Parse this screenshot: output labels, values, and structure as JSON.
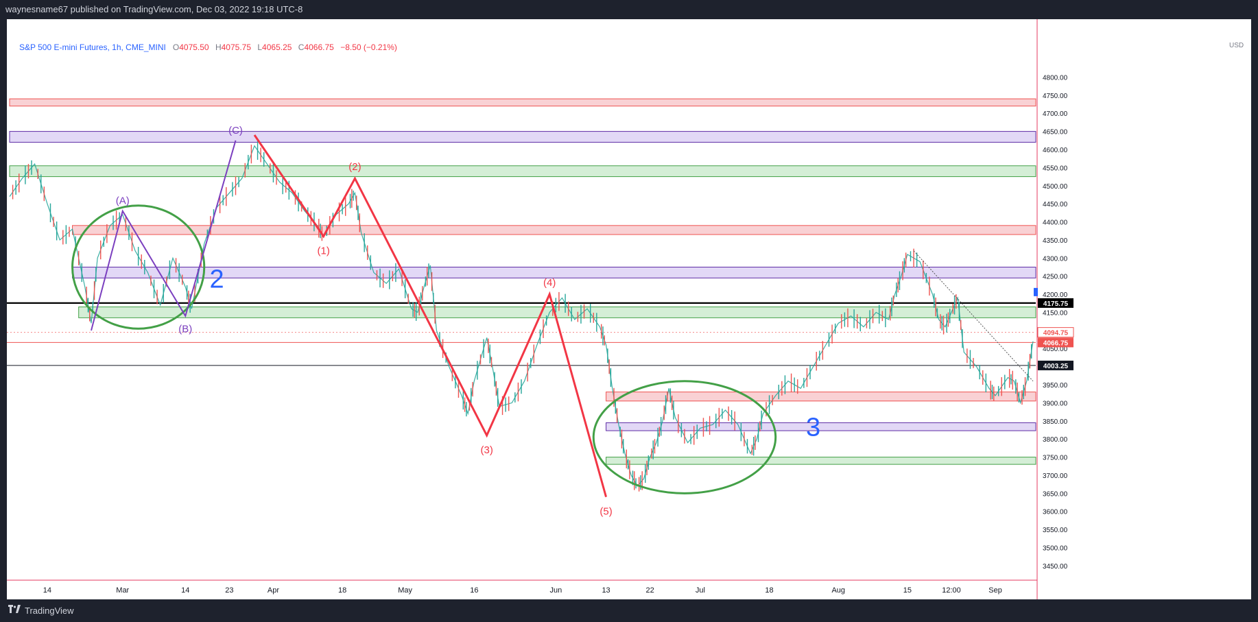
{
  "header": {
    "published_text": "waynesname67 published on TradingView.com, Dec 03, 2022 19:18 UTC-8"
  },
  "legend": {
    "symbol": "S&P 500 E-mini Futures, 1h, CME_MINI",
    "open_label": "O",
    "open": "4075.50",
    "high_label": "H",
    "high": "4075.75",
    "low_label": "L",
    "low": "4065.25",
    "close_label": "C",
    "close": "4066.75",
    "change": "−8.50 (−0.21%)"
  },
  "footer": {
    "brand": "TradingView"
  },
  "colors": {
    "up": "#26a69a",
    "down": "#ef5350",
    "wave": "#f23645",
    "abc": "#7b3fbf",
    "ellipse": "#43a047",
    "number": "#2962ff",
    "red_zone": "#f8c9cc",
    "purple_zone": "#ddd1f4",
    "green_zone": "#cdebcf"
  },
  "chart_data": {
    "type": "line",
    "title": "S&P 500 E-mini Futures, 1h, CME_MINI",
    "currency": "USD",
    "ylim": [
      3410,
      4960
    ],
    "y_ticks": [
      3450,
      3500,
      3550,
      3600,
      3650,
      3700,
      3750,
      3800,
      3850,
      3900,
      3950,
      4000,
      4050,
      4100,
      4150,
      4200,
      4250,
      4300,
      4350,
      4400,
      4450,
      4500,
      4550,
      4600,
      4650,
      4700,
      4750,
      4800
    ],
    "x_ticks": [
      {
        "label": "14",
        "idx": 6
      },
      {
        "label": "Mar",
        "idx": 18
      },
      {
        "label": "14",
        "idx": 28
      },
      {
        "label": "23",
        "idx": 35
      },
      {
        "label": "Apr",
        "idx": 42
      },
      {
        "label": "18",
        "idx": 53
      },
      {
        "label": "May",
        "idx": 63
      },
      {
        "label": "16",
        "idx": 74
      },
      {
        "label": "Jun",
        "idx": 87
      },
      {
        "label": "13",
        "idx": 95
      },
      {
        "label": "22",
        "idx": 102
      },
      {
        "label": "Jul",
        "idx": 110
      },
      {
        "label": "18",
        "idx": 121
      },
      {
        "label": "Aug",
        "idx": 132
      },
      {
        "label": "15",
        "idx": 143
      },
      {
        "label": "12:00",
        "idx": 150
      },
      {
        "label": "Sep",
        "idx": 157
      }
    ],
    "x_count": 164,
    "price_series": {
      "name": "",
      "points": [
        [
          0,
          4470
        ],
        [
          2,
          4520
        ],
        [
          4,
          4560
        ],
        [
          6,
          4450
        ],
        [
          8,
          4350
        ],
        [
          10,
          4380
        ],
        [
          12,
          4220
        ],
        [
          13,
          4120
        ],
        [
          14,
          4300
        ],
        [
          16,
          4390
        ],
        [
          18,
          4420
        ],
        [
          20,
          4320
        ],
        [
          22,
          4260
        ],
        [
          24,
          4170
        ],
        [
          26,
          4300
        ],
        [
          28,
          4220
        ],
        [
          29,
          4160
        ],
        [
          31,
          4340
        ],
        [
          33,
          4440
        ],
        [
          35,
          4480
        ],
        [
          37,
          4520
        ],
        [
          39,
          4610
        ],
        [
          41,
          4560
        ],
        [
          43,
          4510
        ],
        [
          45,
          4480
        ],
        [
          47,
          4430
        ],
        [
          49,
          4390
        ],
        [
          50,
          4360
        ],
        [
          52,
          4420
        ],
        [
          54,
          4450
        ],
        [
          55,
          4480
        ],
        [
          56,
          4370
        ],
        [
          58,
          4260
        ],
        [
          60,
          4230
        ],
        [
          62,
          4270
        ],
        [
          64,
          4160
        ],
        [
          65,
          4150
        ],
        [
          66,
          4220
        ],
        [
          67,
          4280
        ],
        [
          68,
          4100
        ],
        [
          70,
          4000
        ],
        [
          72,
          3920
        ],
        [
          73,
          3870
        ],
        [
          74,
          3960
        ],
        [
          76,
          4080
        ],
        [
          77,
          3990
        ],
        [
          78,
          3890
        ],
        [
          80,
          3900
        ],
        [
          82,
          3960
        ],
        [
          84,
          4060
        ],
        [
          86,
          4150
        ],
        [
          88,
          4190
        ],
        [
          90,
          4130
        ],
        [
          92,
          4160
        ],
        [
          94,
          4110
        ],
        [
          95,
          4060
        ],
        [
          96,
          3940
        ],
        [
          97,
          3840
        ],
        [
          98,
          3760
        ],
        [
          99,
          3700
        ],
        [
          100,
          3670
        ],
        [
          101,
          3690
        ],
        [
          102,
          3750
        ],
        [
          103,
          3790
        ],
        [
          104,
          3850
        ],
        [
          105,
          3940
        ],
        [
          106,
          3860
        ],
        [
          108,
          3790
        ],
        [
          110,
          3830
        ],
        [
          112,
          3840
        ],
        [
          114,
          3880
        ],
        [
          116,
          3840
        ],
        [
          118,
          3760
        ],
        [
          119,
          3800
        ],
        [
          120,
          3870
        ],
        [
          122,
          3920
        ],
        [
          124,
          3960
        ],
        [
          126,
          3940
        ],
        [
          128,
          4000
        ],
        [
          130,
          4060
        ],
        [
          132,
          4120
        ],
        [
          134,
          4140
        ],
        [
          136,
          4110
        ],
        [
          138,
          4150
        ],
        [
          140,
          4130
        ],
        [
          141,
          4200
        ],
        [
          142,
          4250
        ],
        [
          143,
          4310
        ],
        [
          145,
          4290
        ],
        [
          147,
          4200
        ],
        [
          148,
          4130
        ],
        [
          149,
          4110
        ],
        [
          150,
          4150
        ],
        [
          151,
          4190
        ],
        [
          152,
          4040
        ],
        [
          154,
          4000
        ],
        [
          156,
          3940
        ],
        [
          157,
          3920
        ],
        [
          159,
          3970
        ],
        [
          160,
          3960
        ],
        [
          161,
          3900
        ],
        [
          162,
          3960
        ],
        [
          163,
          4070
        ]
      ]
    },
    "horizontal_lines": [
      {
        "label": "4175.75",
        "y": 4175.75,
        "color": "#000000"
      },
      {
        "label": "4003.25",
        "y": 4003.25,
        "color": "#131722"
      },
      {
        "label": "4094.75",
        "y": 4094.75,
        "color": "#ef5350"
      },
      {
        "label": "4066.75",
        "y": 4066.75,
        "color": "#ef5350"
      }
    ],
    "zones": [
      {
        "kind": "red",
        "x_from": 0,
        "x_to": 164,
        "y_low": 4720,
        "y_high": 4740
      },
      {
        "kind": "purple",
        "x_from": 0,
        "x_to": 164,
        "y_low": 4620,
        "y_high": 4650
      },
      {
        "kind": "green",
        "x_from": 0,
        "x_to": 164,
        "y_low": 4525,
        "y_high": 4555
      },
      {
        "kind": "red",
        "x_from": 10,
        "x_to": 164,
        "y_low": 4365,
        "y_high": 4390
      },
      {
        "kind": "purple",
        "x_from": 10,
        "x_to": 164,
        "y_low": 4245,
        "y_high": 4275
      },
      {
        "kind": "green",
        "x_from": 11,
        "x_to": 164,
        "y_low": 4135,
        "y_high": 4165
      },
      {
        "kind": "red",
        "x_from": 95,
        "x_to": 164,
        "y_low": 3905,
        "y_high": 3930
      },
      {
        "kind": "purple",
        "x_from": 95,
        "x_to": 164,
        "y_low": 3823,
        "y_high": 3845
      },
      {
        "kind": "green",
        "x_from": 95,
        "x_to": 164,
        "y_low": 3730,
        "y_high": 3750
      }
    ],
    "abc_wave": {
      "points": [
        [
          13,
          4100
        ],
        [
          18,
          4430
        ],
        [
          28,
          4140
        ],
        [
          36,
          4625
        ]
      ],
      "labels": [
        {
          "text": "(A)",
          "at": [
            18,
            4430
          ]
        },
        {
          "text": "(B)",
          "at": [
            28,
            4140
          ]
        },
        {
          "text": "(C)",
          "at": [
            36,
            4625
          ]
        }
      ]
    },
    "impulse_wave": {
      "points": [
        [
          39,
          4640
        ],
        [
          50,
          4360
        ],
        [
          55,
          4520
        ],
        [
          76,
          3810
        ],
        [
          86,
          4200
        ],
        [
          95,
          3640
        ]
      ],
      "labels": [
        {
          "text": "(1)",
          "at": [
            50,
            4360
          ]
        },
        {
          "text": "(2)",
          "at": [
            55,
            4520
          ]
        },
        {
          "text": "(3)",
          "at": [
            76,
            3810
          ]
        },
        {
          "text": "(4)",
          "at": [
            86,
            4200
          ]
        },
        {
          "text": "(5)",
          "at": [
            95,
            3640
          ]
        }
      ]
    },
    "annotations": [
      {
        "text": "2",
        "at": [
          33,
          4245
        ]
      },
      {
        "text": "3",
        "at": [
          128,
          3835
        ]
      }
    ],
    "ellipses": [
      {
        "center": [
          20.5,
          4275
        ],
        "rx_idx": 10.5,
        "ry_price": 170
      },
      {
        "center": [
          107.5,
          3805
        ],
        "rx_idx": 14.5,
        "ry_price": 155
      }
    ],
    "trendline": {
      "from": [
        144,
        4320
      ],
      "to": [
        163,
        3960
      ]
    }
  }
}
